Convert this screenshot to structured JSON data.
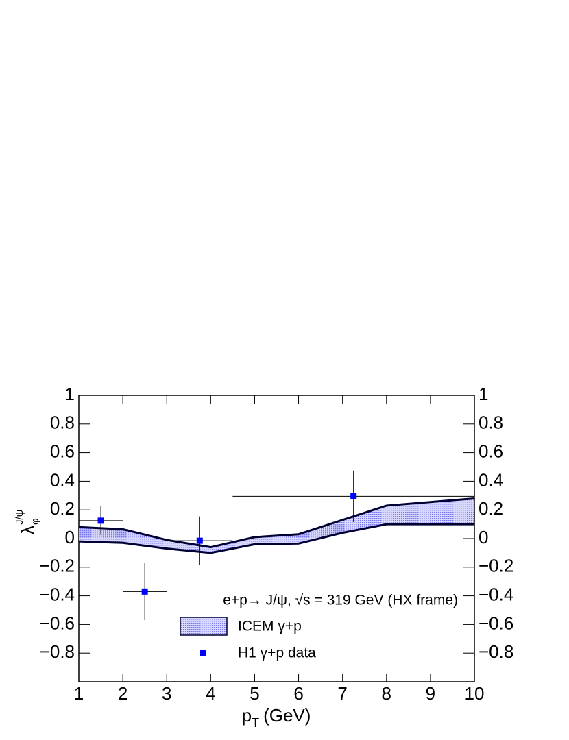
{
  "chart_data": {
    "type": "band-with-points",
    "xlabel": {
      "main": "p",
      "subscript": "T",
      "unit": "(GeV)"
    },
    "ylabel": {
      "symbol": "λ",
      "superscript": "J/ψ",
      "subscript": "φ"
    },
    "annotation": "e+p→ J/ψ, √s = 319 GeV (HX frame)",
    "xlim": [
      1,
      10
    ],
    "ylim": [
      -1,
      1
    ],
    "xticks": [
      1,
      2,
      3,
      4,
      5,
      6,
      7,
      8,
      9,
      10
    ],
    "yticks": [
      1,
      0.8,
      0.6,
      0.4,
      0.2,
      0,
      {
        "value": -0.2,
        "label": "−0.2"
      },
      {
        "value": -0.4,
        "label": "−0.4"
      },
      {
        "value": -0.6,
        "label": "−0.6"
      },
      {
        "value": -0.8,
        "label": "−0.8"
      }
    ],
    "band": {
      "name": "ICEM γ+p",
      "color": "#8888ee",
      "line_color": "#000033",
      "x": [
        1,
        2,
        3,
        4,
        5,
        6,
        7,
        8,
        9,
        10
      ],
      "upper": [
        0.08,
        0.065,
        -0.01,
        -0.06,
        0.01,
        0.03,
        0.13,
        0.23,
        0.255,
        0.28
      ],
      "lower": [
        -0.02,
        -0.03,
        -0.07,
        -0.1,
        -0.04,
        -0.035,
        0.04,
        0.1,
        0.1,
        0.1
      ]
    },
    "points": {
      "name": "H1 γ+p data",
      "color": "#0000ff",
      "x": [
        1.5,
        2.5,
        3.75,
        7.25
      ],
      "values": [
        0.125,
        -0.37,
        -0.015,
        0.295
      ],
      "xlow": [
        1,
        2,
        3,
        4.5
      ],
      "xhigh": [
        2,
        3,
        4.5,
        10
      ],
      "yerr": [
        0.1,
        0.2,
        0.17,
        0.18
      ]
    }
  }
}
